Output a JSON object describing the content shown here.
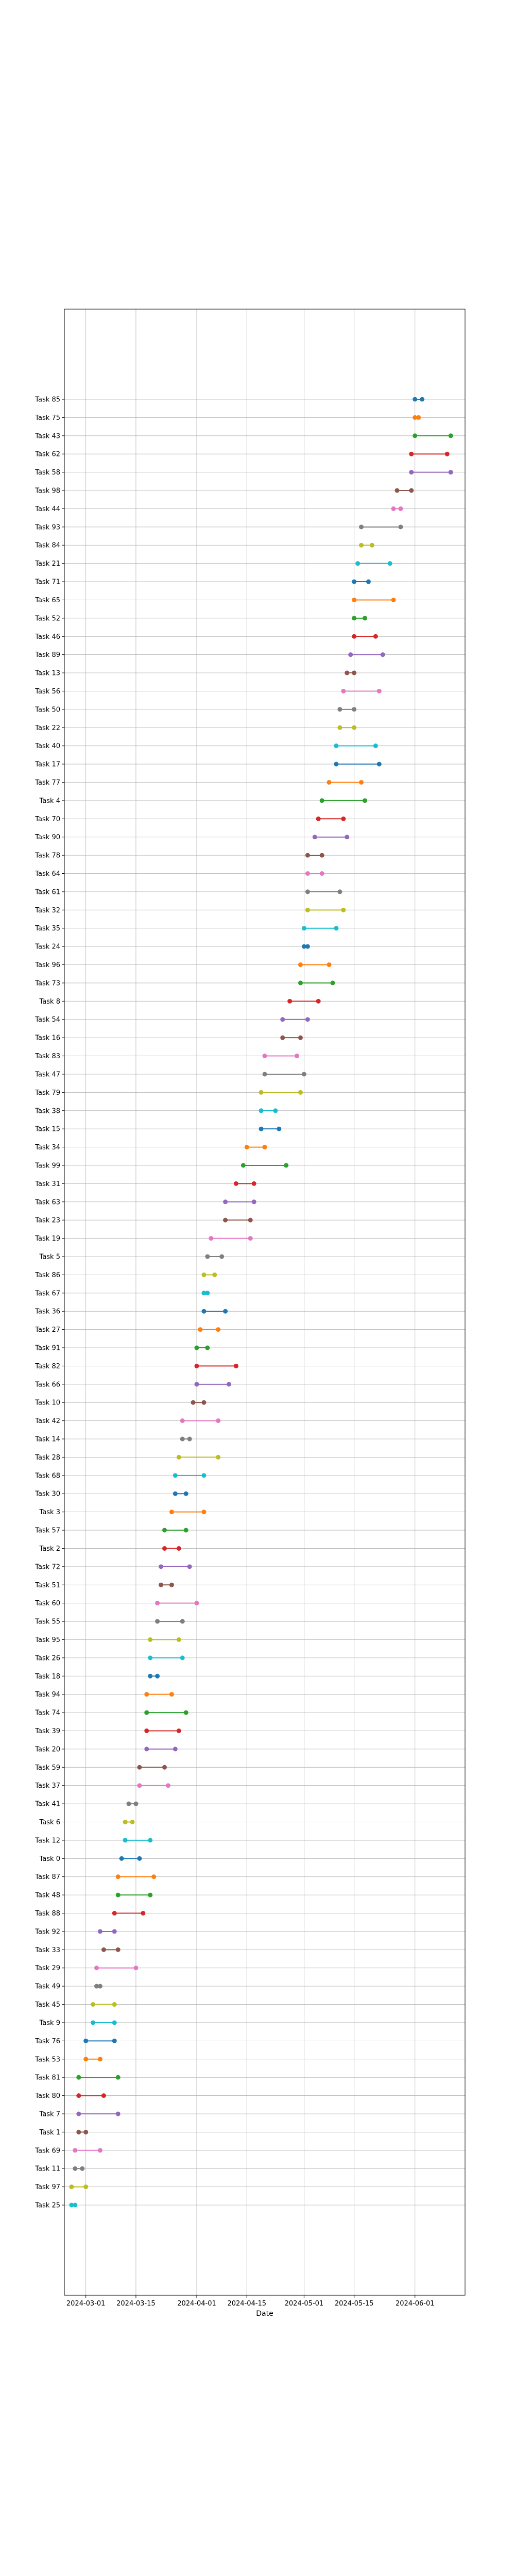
{
  "chart_data": {
    "type": "dumbbell",
    "title": "",
    "xlabel": "Date",
    "ylabel": "",
    "grid": true,
    "x_ticks": [
      "2024-03-01",
      "2024-03-15",
      "2024-04-01",
      "2024-04-15",
      "2024-05-01",
      "2024-05-15",
      "2024-06-01"
    ],
    "xlim": [
      "2024-02-24",
      "2024-06-15"
    ],
    "palette": [
      "#1f77b4",
      "#ff7f0e",
      "#2ca02c",
      "#d62728",
      "#9467bd",
      "#8c564b",
      "#e377c2",
      "#7f7f7f",
      "#bcbd22",
      "#17becf"
    ],
    "tasks": [
      {
        "name": "Task 85",
        "start": "2024-06-01",
        "end": "2024-06-03"
      },
      {
        "name": "Task 75",
        "start": "2024-06-01",
        "end": "2024-06-02"
      },
      {
        "name": "Task 43",
        "start": "2024-06-01",
        "end": "2024-06-11"
      },
      {
        "name": "Task 62",
        "start": "2024-05-31",
        "end": "2024-06-10"
      },
      {
        "name": "Task 58",
        "start": "2024-05-31",
        "end": "2024-06-11"
      },
      {
        "name": "Task 98",
        "start": "2024-05-27",
        "end": "2024-05-31"
      },
      {
        "name": "Task 44",
        "start": "2024-05-26",
        "end": "2024-05-28"
      },
      {
        "name": "Task 93",
        "start": "2024-05-17",
        "end": "2024-05-28"
      },
      {
        "name": "Task 84",
        "start": "2024-05-17",
        "end": "2024-05-20"
      },
      {
        "name": "Task 21",
        "start": "2024-05-16",
        "end": "2024-05-25"
      },
      {
        "name": "Task 71",
        "start": "2024-05-15",
        "end": "2024-05-19"
      },
      {
        "name": "Task 65",
        "start": "2024-05-15",
        "end": "2024-05-26"
      },
      {
        "name": "Task 52",
        "start": "2024-05-15",
        "end": "2024-05-18"
      },
      {
        "name": "Task 46",
        "start": "2024-05-15",
        "end": "2024-05-21"
      },
      {
        "name": "Task 89",
        "start": "2024-05-14",
        "end": "2024-05-23"
      },
      {
        "name": "Task 13",
        "start": "2024-05-13",
        "end": "2024-05-15"
      },
      {
        "name": "Task 56",
        "start": "2024-05-12",
        "end": "2024-05-22"
      },
      {
        "name": "Task 50",
        "start": "2024-05-11",
        "end": "2024-05-15"
      },
      {
        "name": "Task 22",
        "start": "2024-05-11",
        "end": "2024-05-15"
      },
      {
        "name": "Task 40",
        "start": "2024-05-10",
        "end": "2024-05-21"
      },
      {
        "name": "Task 17",
        "start": "2024-05-10",
        "end": "2024-05-22"
      },
      {
        "name": "Task 77",
        "start": "2024-05-08",
        "end": "2024-05-17"
      },
      {
        "name": "Task 4",
        "start": "2024-05-06",
        "end": "2024-05-18"
      },
      {
        "name": "Task 70",
        "start": "2024-05-05",
        "end": "2024-05-12"
      },
      {
        "name": "Task 90",
        "start": "2024-05-04",
        "end": "2024-05-13"
      },
      {
        "name": "Task 78",
        "start": "2024-05-02",
        "end": "2024-05-06"
      },
      {
        "name": "Task 64",
        "start": "2024-05-02",
        "end": "2024-05-06"
      },
      {
        "name": "Task 61",
        "start": "2024-05-02",
        "end": "2024-05-11"
      },
      {
        "name": "Task 32",
        "start": "2024-05-02",
        "end": "2024-05-12"
      },
      {
        "name": "Task 35",
        "start": "2024-05-01",
        "end": "2024-05-10"
      },
      {
        "name": "Task 24",
        "start": "2024-05-01",
        "end": "2024-05-02"
      },
      {
        "name": "Task 96",
        "start": "2024-04-30",
        "end": "2024-05-08"
      },
      {
        "name": "Task 73",
        "start": "2024-04-30",
        "end": "2024-05-09"
      },
      {
        "name": "Task 8",
        "start": "2024-04-27",
        "end": "2024-05-05"
      },
      {
        "name": "Task 54",
        "start": "2024-04-25",
        "end": "2024-05-02"
      },
      {
        "name": "Task 16",
        "start": "2024-04-25",
        "end": "2024-04-30"
      },
      {
        "name": "Task 83",
        "start": "2024-04-20",
        "end": "2024-04-29"
      },
      {
        "name": "Task 47",
        "start": "2024-04-20",
        "end": "2024-05-01"
      },
      {
        "name": "Task 79",
        "start": "2024-04-19",
        "end": "2024-04-30"
      },
      {
        "name": "Task 38",
        "start": "2024-04-19",
        "end": "2024-04-23"
      },
      {
        "name": "Task 15",
        "start": "2024-04-19",
        "end": "2024-04-24"
      },
      {
        "name": "Task 34",
        "start": "2024-04-15",
        "end": "2024-04-20"
      },
      {
        "name": "Task 99",
        "start": "2024-04-14",
        "end": "2024-04-26"
      },
      {
        "name": "Task 31",
        "start": "2024-04-12",
        "end": "2024-04-17"
      },
      {
        "name": "Task 63",
        "start": "2024-04-09",
        "end": "2024-04-17"
      },
      {
        "name": "Task 23",
        "start": "2024-04-09",
        "end": "2024-04-16"
      },
      {
        "name": "Task 19",
        "start": "2024-04-05",
        "end": "2024-04-16"
      },
      {
        "name": "Task 5",
        "start": "2024-04-04",
        "end": "2024-04-08"
      },
      {
        "name": "Task 86",
        "start": "2024-04-03",
        "end": "2024-04-06"
      },
      {
        "name": "Task 67",
        "start": "2024-04-03",
        "end": "2024-04-04"
      },
      {
        "name": "Task 36",
        "start": "2024-04-03",
        "end": "2024-04-09"
      },
      {
        "name": "Task 27",
        "start": "2024-04-02",
        "end": "2024-04-07"
      },
      {
        "name": "Task 91",
        "start": "2024-04-01",
        "end": "2024-04-04"
      },
      {
        "name": "Task 82",
        "start": "2024-04-01",
        "end": "2024-04-12"
      },
      {
        "name": "Task 66",
        "start": "2024-04-01",
        "end": "2024-04-10"
      },
      {
        "name": "Task 10",
        "start": "2024-03-31",
        "end": "2024-04-03"
      },
      {
        "name": "Task 42",
        "start": "2024-03-28",
        "end": "2024-04-07"
      },
      {
        "name": "Task 14",
        "start": "2024-03-28",
        "end": "2024-03-30"
      },
      {
        "name": "Task 28",
        "start": "2024-03-27",
        "end": "2024-04-07"
      },
      {
        "name": "Task 68",
        "start": "2024-03-26",
        "end": "2024-04-03"
      },
      {
        "name": "Task 30",
        "start": "2024-03-26",
        "end": "2024-03-29"
      },
      {
        "name": "Task 3",
        "start": "2024-03-25",
        "end": "2024-04-03"
      },
      {
        "name": "Task 57",
        "start": "2024-03-23",
        "end": "2024-03-29"
      },
      {
        "name": "Task 2",
        "start": "2024-03-23",
        "end": "2024-03-27"
      },
      {
        "name": "Task 72",
        "start": "2024-03-22",
        "end": "2024-03-30"
      },
      {
        "name": "Task 51",
        "start": "2024-03-22",
        "end": "2024-03-25"
      },
      {
        "name": "Task 60",
        "start": "2024-03-21",
        "end": "2024-04-01"
      },
      {
        "name": "Task 55",
        "start": "2024-03-21",
        "end": "2024-03-28"
      },
      {
        "name": "Task 95",
        "start": "2024-03-19",
        "end": "2024-03-27"
      },
      {
        "name": "Task 26",
        "start": "2024-03-19",
        "end": "2024-03-28"
      },
      {
        "name": "Task 18",
        "start": "2024-03-19",
        "end": "2024-03-21"
      },
      {
        "name": "Task 94",
        "start": "2024-03-18",
        "end": "2024-03-25"
      },
      {
        "name": "Task 74",
        "start": "2024-03-18",
        "end": "2024-03-29"
      },
      {
        "name": "Task 39",
        "start": "2024-03-18",
        "end": "2024-03-27"
      },
      {
        "name": "Task 20",
        "start": "2024-03-18",
        "end": "2024-03-26"
      },
      {
        "name": "Task 59",
        "start": "2024-03-16",
        "end": "2024-03-23"
      },
      {
        "name": "Task 37",
        "start": "2024-03-16",
        "end": "2024-03-24"
      },
      {
        "name": "Task 41",
        "start": "2024-03-13",
        "end": "2024-03-15"
      },
      {
        "name": "Task 6",
        "start": "2024-03-12",
        "end": "2024-03-14"
      },
      {
        "name": "Task 12",
        "start": "2024-03-12",
        "end": "2024-03-19"
      },
      {
        "name": "Task 0",
        "start": "2024-03-11",
        "end": "2024-03-16"
      },
      {
        "name": "Task 87",
        "start": "2024-03-10",
        "end": "2024-03-20"
      },
      {
        "name": "Task 48",
        "start": "2024-03-10",
        "end": "2024-03-19"
      },
      {
        "name": "Task 88",
        "start": "2024-03-09",
        "end": "2024-03-17"
      },
      {
        "name": "Task 92",
        "start": "2024-03-05",
        "end": "2024-03-09"
      },
      {
        "name": "Task 33",
        "start": "2024-03-06",
        "end": "2024-03-10"
      },
      {
        "name": "Task 29",
        "start": "2024-03-04",
        "end": "2024-03-15"
      },
      {
        "name": "Task 49",
        "start": "2024-03-04",
        "end": "2024-03-05"
      },
      {
        "name": "Task 45",
        "start": "2024-03-03",
        "end": "2024-03-09"
      },
      {
        "name": "Task 9",
        "start": "2024-03-03",
        "end": "2024-03-09"
      },
      {
        "name": "Task 76",
        "start": "2024-03-01",
        "end": "2024-03-09"
      },
      {
        "name": "Task 53",
        "start": "2024-03-01",
        "end": "2024-03-05"
      },
      {
        "name": "Task 81",
        "start": "2024-02-28",
        "end": "2024-03-10"
      },
      {
        "name": "Task 80",
        "start": "2024-02-28",
        "end": "2024-03-06"
      },
      {
        "name": "Task 7",
        "start": "2024-02-28",
        "end": "2024-03-10"
      },
      {
        "name": "Task 1",
        "start": "2024-02-28",
        "end": "2024-03-01"
      },
      {
        "name": "Task 69",
        "start": "2024-02-27",
        "end": "2024-03-05"
      },
      {
        "name": "Task 11",
        "start": "2024-02-27",
        "end": "2024-02-29"
      },
      {
        "name": "Task 97",
        "start": "2024-02-26",
        "end": "2024-03-01"
      },
      {
        "name": "Task 25",
        "start": "2024-02-26",
        "end": "2024-02-27"
      }
    ]
  }
}
